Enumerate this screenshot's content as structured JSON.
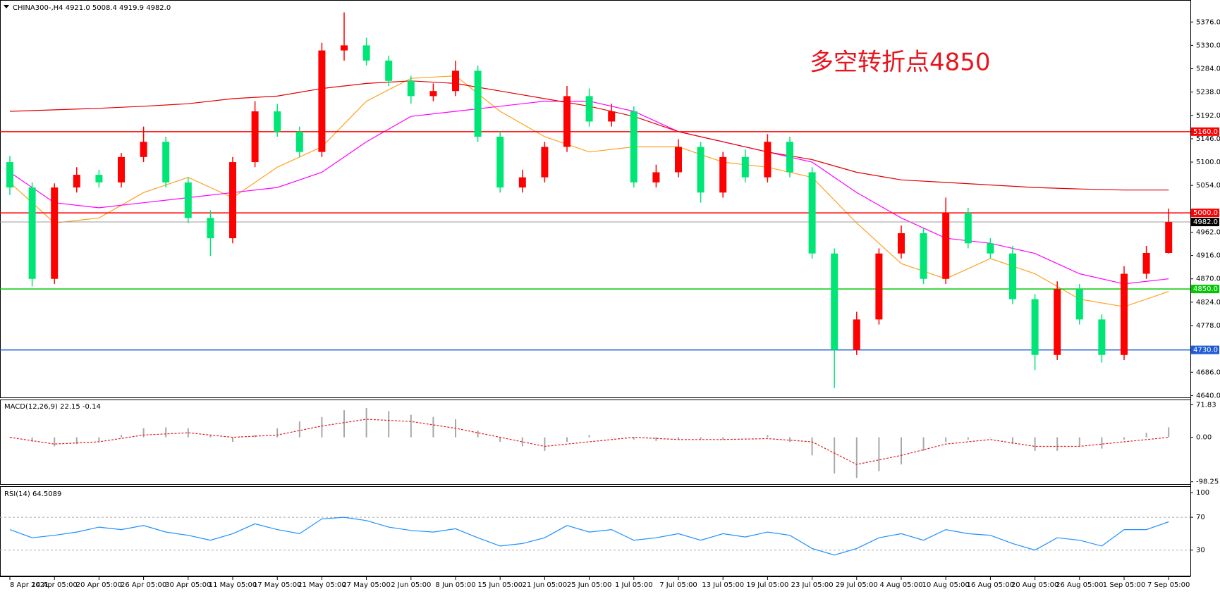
{
  "chart_data": [
    {
      "type": "candlestick",
      "title": "CHINA300-,H4  4921.0 5008.4 4919.9 4982.0",
      "annotation": "多空转折点4850",
      "categories": [
        "8 Apr 2021",
        null,
        "14 Apr 05:00",
        null,
        "20 Apr 05:00",
        null,
        "26 Apr 05:00",
        null,
        "30 Apr 05:00",
        null,
        "11 May 05:00",
        null,
        "17 May 05:00",
        null,
        "21 May 05:00",
        null,
        "27 May 05:00",
        null,
        "2 Jun 05:00",
        null,
        "8 Jun 05:00",
        null,
        "15 Jun 05:00",
        null,
        "21 Jun 05:00",
        null,
        "25 Jun 05:00",
        null,
        "1 Jul 05:00",
        null,
        "7 Jul 05:00",
        null,
        "13 Jul 05:00",
        null,
        "19 Jul 05:00",
        null,
        "23 Jul 05:00",
        null,
        "29 Jul 05:00",
        null,
        "4 Aug 05:00",
        null,
        "10 Aug 05:00",
        null,
        "16 Aug 05:00",
        null,
        "20 Aug 05:00",
        null,
        "26 Aug 05:00",
        null,
        "1 Sep 05:00",
        null,
        "7 Sep 05:00"
      ],
      "open": [
        5100,
        5050,
        4870,
        5050,
        5075,
        5060,
        5110,
        5140,
        5060,
        4990,
        4950,
        5100,
        5200,
        5160,
        5120,
        5320,
        5330,
        5300,
        5260,
        5230,
        5240,
        5280,
        5150,
        5050,
        5070,
        5130,
        5230,
        5180,
        5200,
        5060,
        5080,
        5130,
        5040,
        5110,
        5070,
        5140,
        5080,
        4920,
        4730,
        4790,
        4920,
        4960,
        4870,
        5000,
        4940,
        4920,
        4830,
        4720,
        4850,
        4790,
        4720,
        4880,
        4921
      ],
      "high": [
        5112,
        5060,
        5058,
        5090,
        5085,
        5118,
        5170,
        5150,
        5070,
        5005,
        5110,
        5220,
        5215,
        5170,
        5335,
        5395,
        5345,
        5310,
        5270,
        5255,
        5300,
        5290,
        5160,
        5085,
        5140,
        5250,
        5245,
        5215,
        5210,
        5095,
        5145,
        5140,
        5120,
        5125,
        5155,
        5150,
        5090,
        4930,
        4805,
        4930,
        4975,
        4970,
        5030,
        5010,
        4950,
        4935,
        4840,
        4865,
        4860,
        4800,
        4895,
        4935,
        5008.4
      ],
      "low": [
        5035,
        4855,
        4860,
        5040,
        5050,
        5050,
        5100,
        5050,
        4980,
        4915,
        4940,
        5090,
        5150,
        5110,
        5110,
        5300,
        5290,
        5250,
        5215,
        5220,
        5230,
        5140,
        5040,
        5040,
        5060,
        5120,
        5170,
        5170,
        5050,
        5050,
        5070,
        5020,
        5030,
        5060,
        5060,
        5070,
        4910,
        4655,
        4720,
        4780,
        4910,
        4860,
        4860,
        4930,
        4910,
        4820,
        4690,
        4710,
        4780,
        4705,
        4710,
        4870,
        4919.9
      ],
      "close": [
        5050,
        4870,
        5050,
        5075,
        5060,
        5110,
        5140,
        5060,
        4990,
        4950,
        5100,
        5200,
        5160,
        5120,
        5320,
        5330,
        5300,
        5260,
        5230,
        5240,
        5280,
        5150,
        5050,
        5070,
        5130,
        5230,
        5180,
        5200,
        5060,
        5080,
        5130,
        5040,
        5110,
        5070,
        5140,
        5080,
        4920,
        4730,
        4790,
        4920,
        4960,
        4870,
        5000,
        4940,
        4920,
        4830,
        4720,
        4850,
        4790,
        4720,
        4880,
        4921,
        4982
      ],
      "up_color": "#ff0000",
      "down_color": "#00e676",
      "ylim": [
        4635,
        5418
      ],
      "yticks": [
        {
          "value": 4640,
          "label": "4640.0"
        },
        {
          "value": 4686,
          "label": "4686.0"
        },
        {
          "value": 4778,
          "label": "4778.0"
        },
        {
          "value": 4824,
          "label": "4824.0"
        },
        {
          "value": 4870,
          "label": "4870.0"
        },
        {
          "value": 4916,
          "label": "4916.0"
        },
        {
          "value": 4962,
          "label": "4962.0"
        },
        {
          "value": 5054,
          "label": "5054.0"
        },
        {
          "value": 5100,
          "label": "5100.0"
        },
        {
          "value": 5146,
          "label": "5146.0"
        },
        {
          "value": 5192,
          "label": "5192.0"
        },
        {
          "value": 5238,
          "label": "5238.0"
        },
        {
          "value": 5284,
          "label": "5284.0"
        },
        {
          "value": 5330,
          "label": "5330.0"
        },
        {
          "value": 5376,
          "label": "5376.0"
        }
      ],
      "levels": [
        {
          "value": 5160,
          "label": "5160.0",
          "color": "#ff0000"
        },
        {
          "value": 5000,
          "label": "5000.0",
          "color": "#ff0000"
        },
        {
          "value": 4850,
          "label": "4850.0",
          "color": "#00c800"
        },
        {
          "value": 4730,
          "label": "4730.0",
          "color": "#1e5bd6"
        }
      ],
      "last_price": {
        "value": 4982,
        "label": "4982.0",
        "color": "#000000"
      },
      "ma": {
        "x": [
          0,
          2,
          4,
          6,
          8,
          10,
          12,
          14,
          16,
          18,
          20,
          22,
          24,
          26,
          28,
          30,
          32,
          34,
          36,
          38,
          40,
          42,
          44,
          46,
          48,
          50,
          52
        ],
        "series": [
          {
            "color": "#ffa020",
            "values": [
              5060,
              4980,
              4990,
              5040,
              5070,
              5030,
              5090,
              5130,
              5220,
              5265,
              5270,
              5200,
              5150,
              5120,
              5130,
              5130,
              5100,
              5090,
              5070,
              4980,
              4900,
              4870,
              4910,
              4880,
              4830,
              4815,
              4845
            ]
          },
          {
            "color": "#ff00ff",
            "values": [
              5080,
              5020,
              5010,
              5020,
              5030,
              5040,
              5050,
              5080,
              5140,
              5190,
              5200,
              5210,
              5220,
              5220,
              5200,
              5160,
              5140,
              5120,
              5100,
              5040,
              4990,
              4950,
              4940,
              4920,
              4880,
              4860,
              4870
            ]
          },
          {
            "color": "#e00000",
            "values": [
              5200,
              5203,
              5206,
              5210,
              5215,
              5225,
              5230,
              5245,
              5255,
              5260,
              5255,
              5240,
              5225,
              5210,
              5190,
              5160,
              5140,
              5120,
              5105,
              5080,
              5065,
              5060,
              5055,
              5050,
              5047,
              5045,
              5045
            ]
          }
        ]
      }
    },
    {
      "type": "macd",
      "title": "MACD(12,26,9) 22.15 -0.14",
      "ylim": [
        -105,
        82
      ],
      "yticks": [
        {
          "value": 71.83,
          "label": "71.83"
        },
        {
          "value": 0,
          "label": "0.00"
        },
        {
          "value": -98.25,
          "label": "-98.25"
        }
      ],
      "histogram": {
        "color": "#a8a8a8",
        "values": [
          0,
          -10,
          -20,
          -15,
          -10,
          5,
          20,
          22,
          20,
          5,
          -10,
          5,
          20,
          35,
          45,
          60,
          65,
          58,
          50,
          45,
          40,
          15,
          -10,
          -20,
          -30,
          -10,
          5,
          0,
          -5,
          -8,
          -5,
          -5,
          -5,
          0,
          5,
          -10,
          -40,
          -80,
          -90,
          -75,
          -60,
          -30,
          -10,
          -5,
          0,
          -15,
          -30,
          -30,
          -20,
          -25,
          -5,
          10,
          22.15
        ]
      },
      "signal": {
        "color": "#e02020",
        "x": [
          0,
          2,
          4,
          6,
          8,
          10,
          12,
          14,
          16,
          18,
          20,
          22,
          24,
          26,
          28,
          30,
          32,
          34,
          36,
          38,
          40,
          42,
          44,
          46,
          48,
          50,
          52
        ],
        "values": [
          0,
          -15,
          -10,
          5,
          10,
          0,
          5,
          25,
          40,
          35,
          20,
          0,
          -20,
          -10,
          0,
          -5,
          -5,
          -3,
          -10,
          -60,
          -40,
          -15,
          -5,
          -20,
          -20,
          -10,
          -0.14
        ]
      }
    },
    {
      "type": "rsi",
      "title": "RSI(14) 64.5089",
      "ylim": [
        -2,
        107
      ],
      "yticks": [
        30,
        70,
        100
      ],
      "levels": [
        30,
        70
      ],
      "color": "#1e90ff",
      "values": [
        55,
        45,
        48,
        52,
        58,
        55,
        60,
        52,
        48,
        42,
        50,
        62,
        55,
        50,
        68,
        70,
        66,
        58,
        54,
        52,
        56,
        45,
        35,
        38,
        45,
        60,
        52,
        55,
        42,
        45,
        50,
        42,
        50,
        46,
        52,
        48,
        32,
        24,
        32,
        45,
        50,
        42,
        55,
        50,
        48,
        38,
        30,
        45,
        42,
        35,
        55,
        55,
        64.5
      ]
    }
  ]
}
